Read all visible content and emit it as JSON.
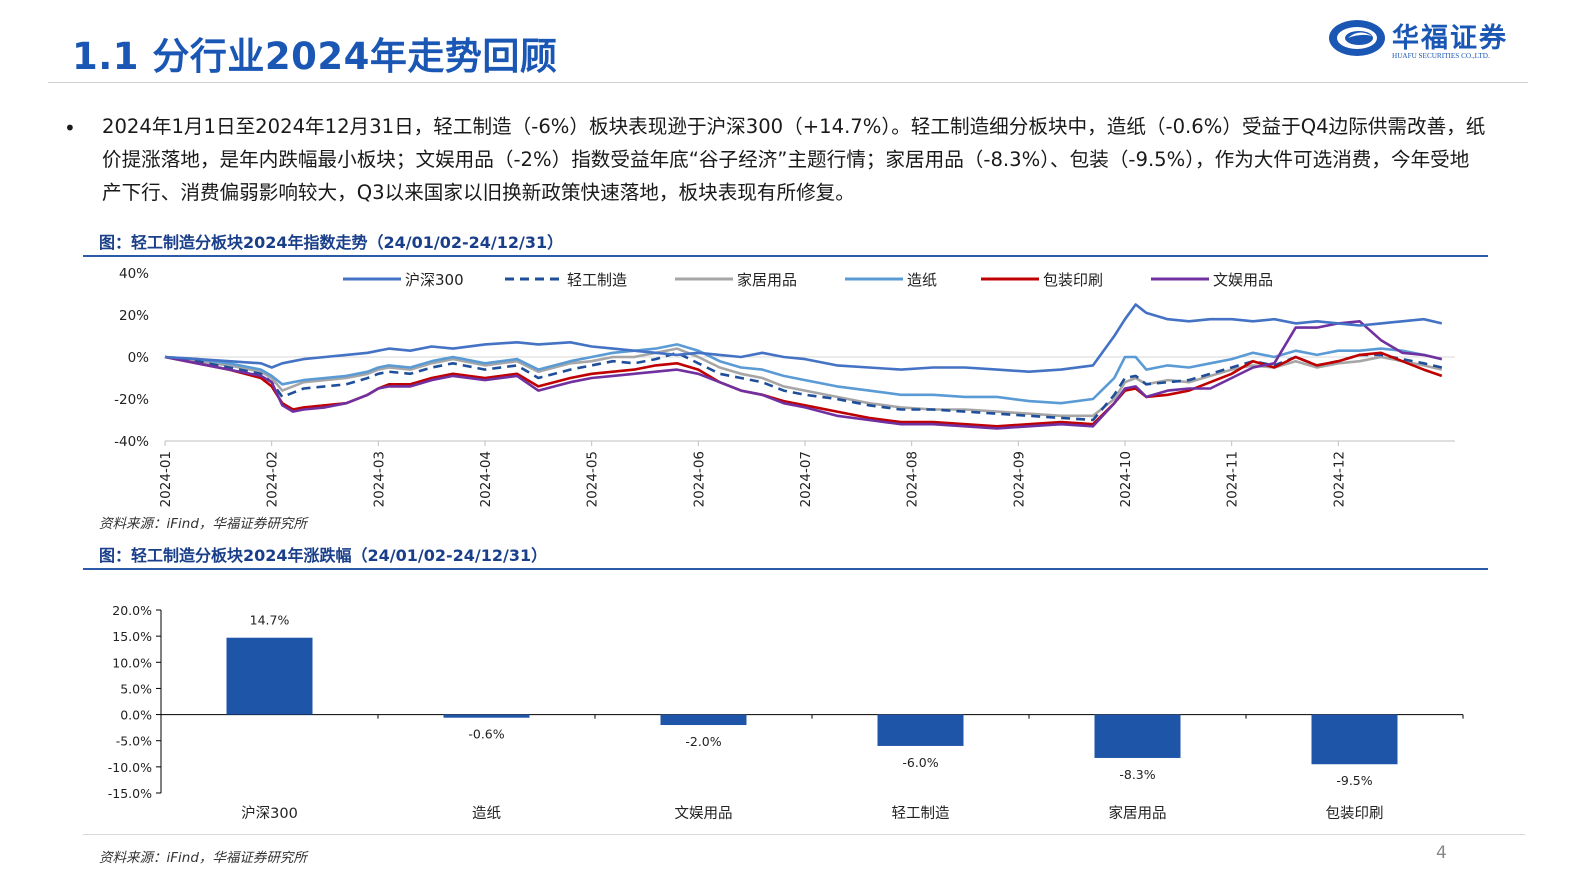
{
  "header": {
    "title": "1.1 分行业2024年走势回顾",
    "logo_cn": "华福证券",
    "logo_en": "HUAFU SECURITIES CO.,LTD."
  },
  "summary": {
    "bullet": "•",
    "text": "2024年1月1日至2024年12月31日，轻工制造（-6%）板块表现逊于沪深300（+14.7%）。轻工制造细分板块中，造纸（-0.6%）受益于Q4边际供需改善，纸价提涨落地，是年内跌幅最小板块；文娱用品（-2%）指数受益年底“谷子经济”主题行情；家居用品（-8.3%）、包装（-9.5%），作为大件可选消费，今年受地产下行、消费偏弱影响较大，Q3以来国家以旧换新政策快速落地，板块表现有所修复。"
  },
  "figure1": {
    "title": "图：轻工制造分板块2024年指数走势（24/01/02-24/12/31）",
    "source": "资料来源：iFind，华福证券研究所"
  },
  "figure2": {
    "title": "图：轻工制造分板块2024年涨跌幅（24/01/02-24/12/31）",
    "source": "资料来源：iFind，华福证券研究所"
  },
  "page_number": "4",
  "colors": {
    "brand": "#1a56b4",
    "hs300": "#4472c4",
    "light_industry": "#1f4e9a",
    "home": "#a6a6a6",
    "paper": "#5b9bd5",
    "packaging": "#c00000",
    "stationery": "#7030a0",
    "bar": "#1f55a8"
  },
  "chart_data": [
    {
      "type": "line",
      "ylim": [
        -40,
        40
      ],
      "yticks": [
        "40%",
        "20%",
        "0%",
        "-20%",
        "-40%"
      ],
      "ytick_values": [
        40,
        20,
        0,
        -20,
        -40
      ],
      "xticks": [
        "2024-01",
        "2024-02",
        "2024-03",
        "2024-04",
        "2024-05",
        "2024-06",
        "2024-07",
        "2024-08",
        "2024-09",
        "2024-10",
        "2024-11",
        "2024-12"
      ],
      "legend_position": "top",
      "grid": false,
      "x": [
        0,
        0.3,
        0.6,
        0.9,
        1.0,
        1.1,
        1.2,
        1.3,
        1.5,
        1.7,
        1.9,
        2.0,
        2.1,
        2.3,
        2.5,
        2.7,
        3.0,
        3.3,
        3.5,
        3.8,
        4.0,
        4.2,
        4.4,
        4.6,
        4.8,
        5.0,
        5.2,
        5.4,
        5.6,
        5.8,
        6.0,
        6.3,
        6.6,
        6.9,
        7.2,
        7.5,
        7.8,
        8.1,
        8.4,
        8.7,
        8.9,
        9.0,
        9.1,
        9.2,
        9.4,
        9.6,
        9.8,
        10.0,
        10.2,
        10.4,
        10.6,
        10.8,
        11.0,
        11.2,
        11.4,
        11.6,
        11.8,
        11.97
      ],
      "series": [
        {
          "name": "沪深300",
          "color_key": "hs300",
          "dash": false,
          "values": [
            0,
            -1,
            -2,
            -3,
            -5,
            -3,
            -2,
            -1,
            0,
            1,
            2,
            3,
            4,
            3,
            5,
            4,
            6,
            7,
            6,
            7,
            5,
            4,
            3,
            2,
            1,
            2,
            1,
            0,
            2,
            0,
            -1,
            -4,
            -5,
            -6,
            -5,
            -5,
            -6,
            -7,
            -6,
            -4,
            10,
            18,
            25,
            21,
            18,
            17,
            18,
            18,
            17,
            18,
            16,
            17,
            16,
            15,
            16,
            17,
            18,
            16
          ]
        },
        {
          "name": "轻工制造",
          "color_key": "light_industry",
          "dash": true,
          "values": [
            0,
            -2,
            -5,
            -8,
            -12,
            -19,
            -17,
            -15,
            -14,
            -13,
            -10,
            -8,
            -7,
            -8,
            -5,
            -3,
            -6,
            -4,
            -10,
            -6,
            -4,
            -2,
            -3,
            -1,
            2,
            -3,
            -8,
            -10,
            -12,
            -16,
            -18,
            -20,
            -23,
            -25,
            -25,
            -26,
            -27,
            -28,
            -29,
            -30,
            -18,
            -10,
            -9,
            -13,
            -12,
            -11,
            -8,
            -5,
            -2,
            -4,
            0,
            -4,
            -2,
            1,
            1,
            -1,
            -3,
            -5
          ]
        },
        {
          "name": "家居用品",
          "color_key": "home",
          "dash": false,
          "values": [
            0,
            -2,
            -4,
            -7,
            -10,
            -16,
            -14,
            -12,
            -11,
            -10,
            -8,
            -6,
            -5,
            -6,
            -3,
            -1,
            -4,
            -2,
            -7,
            -3,
            -2,
            0,
            0,
            2,
            4,
            0,
            -5,
            -8,
            -10,
            -14,
            -16,
            -19,
            -22,
            -24,
            -25,
            -25,
            -26,
            -27,
            -28,
            -28,
            -20,
            -12,
            -10,
            -13,
            -11,
            -12,
            -9,
            -6,
            -4,
            -5,
            -2,
            -5,
            -3,
            -2,
            0,
            -2,
            -4,
            -6
          ]
        },
        {
          "name": "造纸",
          "color_key": "paper",
          "dash": false,
          "values": [
            0,
            -1,
            -3,
            -6,
            -9,
            -13,
            -12,
            -11,
            -10,
            -9,
            -7,
            -5,
            -4,
            -5,
            -2,
            0,
            -3,
            -1,
            -6,
            -2,
            0,
            2,
            3,
            4,
            6,
            3,
            -2,
            -5,
            -6,
            -9,
            -11,
            -14,
            -16,
            -18,
            -18,
            -19,
            -19,
            -21,
            -22,
            -20,
            -10,
            0,
            0,
            -6,
            -4,
            -5,
            -3,
            -1,
            2,
            0,
            3,
            1,
            3,
            3,
            4,
            3,
            1,
            -1
          ]
        },
        {
          "name": "包装印刷",
          "color_key": "packaging",
          "dash": false,
          "values": [
            0,
            -3,
            -6,
            -10,
            -14,
            -22,
            -25,
            -24,
            -23,
            -22,
            -18,
            -15,
            -13,
            -13,
            -10,
            -8,
            -10,
            -8,
            -14,
            -10,
            -8,
            -7,
            -6,
            -4,
            -3,
            -6,
            -12,
            -16,
            -18,
            -21,
            -23,
            -26,
            -29,
            -31,
            -31,
            -32,
            -33,
            -32,
            -31,
            -32,
            -22,
            -16,
            -15,
            -19,
            -18,
            -16,
            -12,
            -8,
            -2,
            -5,
            0,
            -4,
            -2,
            1,
            2,
            -2,
            -6,
            -9
          ]
        },
        {
          "name": "文娱用品",
          "color_key": "stationery",
          "dash": false,
          "values": [
            0,
            -3,
            -6,
            -9,
            -12,
            -23,
            -26,
            -25,
            -24,
            -22,
            -18,
            -15,
            -14,
            -14,
            -11,
            -9,
            -11,
            -9,
            -16,
            -12,
            -10,
            -9,
            -8,
            -7,
            -6,
            -8,
            -12,
            -16,
            -18,
            -22,
            -24,
            -28,
            -30,
            -32,
            -32,
            -33,
            -34,
            -33,
            -32,
            -33,
            -22,
            -15,
            -14,
            -19,
            -16,
            -15,
            -15,
            -10,
            -5,
            -3,
            14,
            14,
            16,
            17,
            8,
            2,
            1,
            -1
          ]
        }
      ]
    },
    {
      "type": "bar",
      "categories": [
        "沪深300",
        "造纸",
        "文娱用品",
        "轻工制造",
        "家居用品",
        "包装印刷"
      ],
      "values": [
        14.7,
        -0.6,
        -2.0,
        -6.0,
        -8.3,
        -9.5
      ],
      "data_labels": [
        "14.7%",
        "-0.6%",
        "-2.0%",
        "-6.0%",
        "-8.3%",
        "-9.5%"
      ],
      "ylim": [
        -15,
        20
      ],
      "yticks": [
        "20.0%",
        "15.0%",
        "10.0%",
        "5.0%",
        "0.0%",
        "-5.0%",
        "-10.0%",
        "-15.0%"
      ],
      "ytick_values": [
        20,
        15,
        10,
        5,
        0,
        -5,
        -10,
        -15
      ]
    }
  ]
}
